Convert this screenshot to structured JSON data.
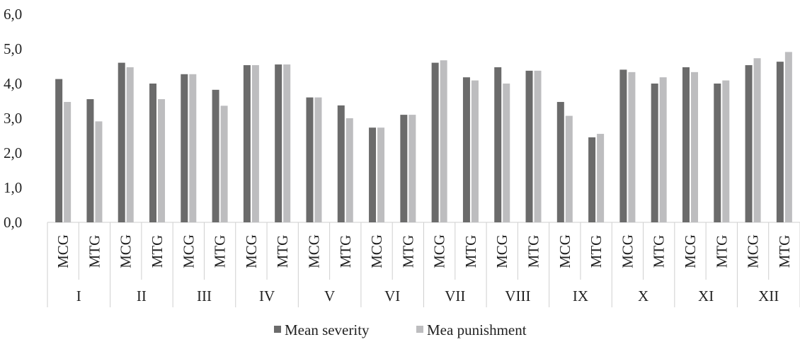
{
  "chart_data": {
    "type": "bar",
    "title": "",
    "xlabel": "",
    "ylabel": "",
    "ylim": [
      0,
      6
    ],
    "yticks": [
      "0,0",
      "1,0",
      "2,0",
      "3,0",
      "4,0",
      "5,0",
      "6,0"
    ],
    "grid": false,
    "legend_position": "bottom",
    "groups": [
      {
        "label": "I",
        "subs": [
          "MCG",
          "MTG"
        ]
      },
      {
        "label": "II",
        "subs": [
          "MCG",
          "MTG"
        ]
      },
      {
        "label": "III",
        "subs": [
          "MCG",
          "MTG"
        ]
      },
      {
        "label": "IV",
        "subs": [
          "MCG",
          "MTG"
        ]
      },
      {
        "label": "V",
        "subs": [
          "MCG",
          "MTG"
        ]
      },
      {
        "label": "VI",
        "subs": [
          "MCG",
          "MTG"
        ]
      },
      {
        "label": "VII",
        "subs": [
          "MCG",
          "MTG"
        ]
      },
      {
        "label": "VIII",
        "subs": [
          "MCG",
          "MTG"
        ]
      },
      {
        "label": "IX",
        "subs": [
          "MCG",
          "MTG"
        ]
      },
      {
        "label": "X",
        "subs": [
          "MCG",
          "MTG"
        ]
      },
      {
        "label": "XI",
        "subs": [
          "MCG",
          "MTG"
        ]
      },
      {
        "label": "XII",
        "subs": [
          "MCG",
          "MTG"
        ]
      }
    ],
    "series": [
      {
        "name": "Mean severity",
        "color": "#6b6b6b",
        "values": [
          4.13,
          3.55,
          4.6,
          4.0,
          4.27,
          3.82,
          4.53,
          4.55,
          3.6,
          3.37,
          2.73,
          3.1,
          4.6,
          4.18,
          4.47,
          4.37,
          3.47,
          2.45,
          4.4,
          4.0,
          4.47,
          4.0,
          4.53,
          4.63
        ]
      },
      {
        "name": "Mea punishment",
        "color": "#bdbdbf",
        "values": [
          3.47,
          2.91,
          4.47,
          3.55,
          4.27,
          3.36,
          4.53,
          4.55,
          3.6,
          3.0,
          2.73,
          3.1,
          4.67,
          4.09,
          4.0,
          4.37,
          3.07,
          2.55,
          4.33,
          4.18,
          4.33,
          4.09,
          4.73,
          4.91
        ]
      }
    ]
  }
}
